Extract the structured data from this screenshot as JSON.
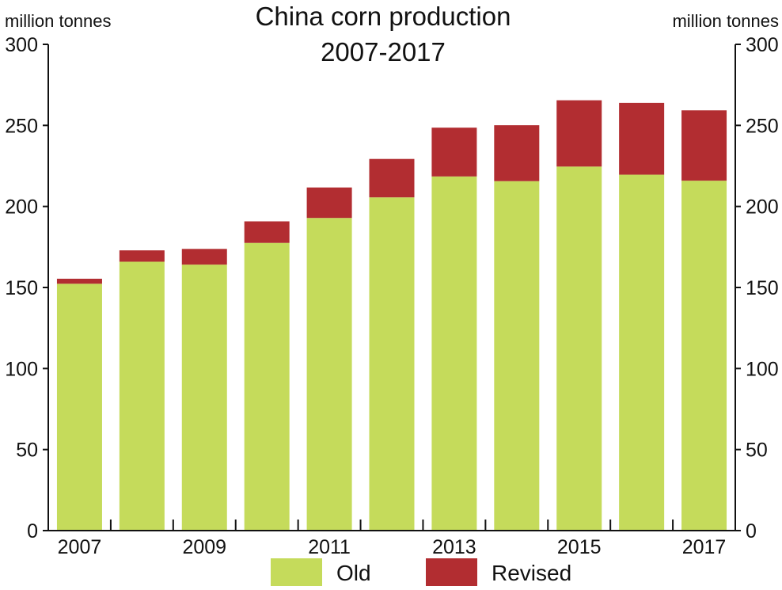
{
  "chart_data": {
    "type": "bar",
    "stacked": true,
    "title": "China corn production",
    "subtitle": "2007-2017",
    "ylabel_left": "million tonnes",
    "ylabel_right": "million tonnes",
    "categories": [
      "2007",
      "2008",
      "2009",
      "2010",
      "2011",
      "2012",
      "2013",
      "2014",
      "2015",
      "2016",
      "2017"
    ],
    "x_tick_labels": [
      "2007",
      "",
      "2009",
      "",
      "2011",
      "",
      "2013",
      "",
      "2015",
      "",
      "2017"
    ],
    "series": [
      {
        "name": "Old",
        "color": "#c5db5b",
        "values": [
          152.3,
          165.9,
          164.1,
          177.5,
          192.9,
          205.6,
          218.5,
          215.6,
          224.6,
          219.6,
          215.9
        ]
      },
      {
        "name": "Revised",
        "color": "#b22d31",
        "values": [
          3.1,
          7.0,
          9.7,
          13.3,
          18.8,
          23.7,
          30.1,
          34.5,
          40.9,
          44.3,
          43.4
        ]
      }
    ],
    "totals": [
      155.4,
      172.9,
      173.8,
      190.8,
      211.7,
      229.3,
      248.6,
      250.1,
      265.5,
      263.9,
      259.3
    ],
    "ylim": [
      0,
      300
    ],
    "y_ticks": [
      0,
      50,
      100,
      150,
      200,
      250,
      300
    ],
    "y_tick_labels": [
      "0",
      "50",
      "100",
      "150",
      "200",
      "250",
      "300"
    ],
    "grid": false,
    "legend_position": "bottom"
  }
}
